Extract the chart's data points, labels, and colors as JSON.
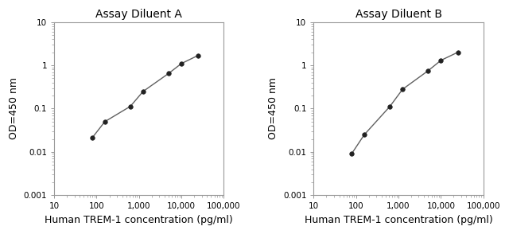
{
  "panel_A": {
    "title": "Assay Diluent A",
    "x": [
      78,
      156,
      625,
      1250,
      5000,
      10000,
      25000
    ],
    "y": [
      0.021,
      0.05,
      0.113,
      0.25,
      0.65,
      1.1,
      1.7
    ]
  },
  "panel_B": {
    "title": "Assay Diluent B",
    "x": [
      78,
      156,
      625,
      1250,
      5000,
      10000,
      25000
    ],
    "y": [
      0.009,
      0.025,
      0.112,
      0.28,
      0.75,
      1.3,
      2.0
    ]
  },
  "xlabel": "Human TREM-1 concentration (pg/ml)",
  "ylabel": "OD=450 nm",
  "xlim": [
    10,
    100000
  ],
  "ylim": [
    0.001,
    10
  ],
  "line_color": "#606060",
  "marker_color": "#222222",
  "marker_size": 4,
  "title_fontsize": 10,
  "label_fontsize": 9,
  "tick_fontsize": 7.5,
  "xlabel_fontsize": 9,
  "ylabel_fontsize": 9,
  "background_color": "#ffffff",
  "x_ticks": [
    10,
    100,
    1000,
    10000,
    100000
  ],
  "x_tick_labels": [
    "10",
    "100",
    "1,000",
    "10,000",
    "100,000"
  ],
  "y_ticks": [
    0.001,
    0.01,
    0.1,
    1,
    10
  ],
  "y_tick_labels": [
    "0.001",
    "0.01",
    "0.1",
    "1",
    "10"
  ],
  "spine_color": "#999999",
  "tick_color": "#999999"
}
